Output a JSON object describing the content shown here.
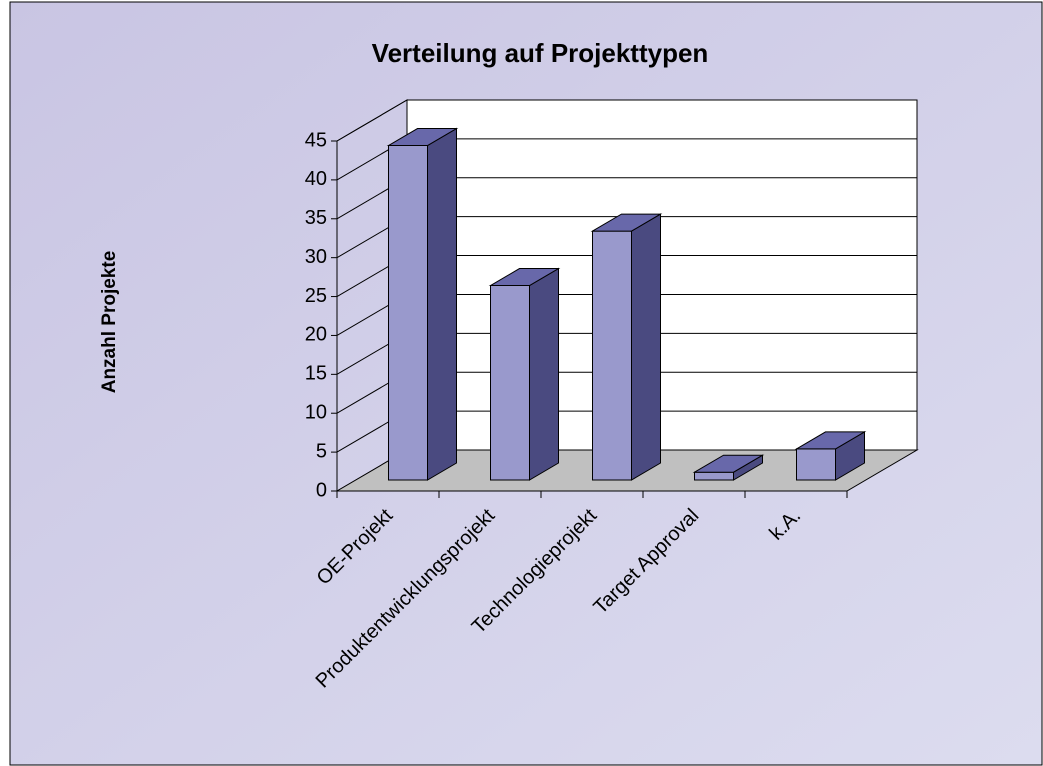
{
  "chart_data": {
    "type": "bar3d",
    "title": "Verteilung auf Projekttypen",
    "y_label": "Anzahl Projekte",
    "categories": [
      "OE-Projekt",
      "Produktentwicklungsprojekt",
      "Technologieprojekt",
      "Target Approval",
      "k.A."
    ],
    "values": [
      43,
      25,
      32,
      1,
      4
    ],
    "color": "#9999cc",
    "ylim": [
      0,
      45
    ],
    "yticks": [
      0,
      5,
      10,
      15,
      20,
      25,
      30,
      35,
      40,
      45
    ],
    "grid": true
  }
}
